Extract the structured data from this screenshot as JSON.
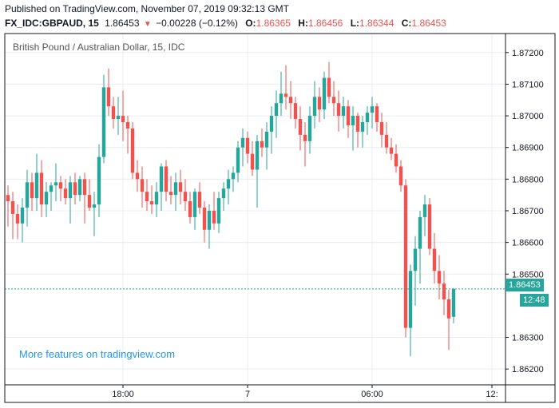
{
  "header": {
    "published": "Published on TradingView.com, November 07, 2019 09:32:13 GMT",
    "symbol": "FX_IDC:GBPAUD, 15",
    "last": "1.86453",
    "change": "−0.00228 (−0.12%)",
    "open_label": "O:",
    "open": "1.86365",
    "high_label": "H:",
    "high": "1.86456",
    "low_label": "L:",
    "low": "1.86344",
    "close_label": "C:",
    "close": "1.86453"
  },
  "promo_text": "More features on tradingview.com",
  "price_tag": "1.86453",
  "time_tag": "12:48",
  "colors": {
    "up": "#26a69a",
    "down": "#ef5350",
    "grid": "#e9ecf2",
    "axis": "#131722"
  },
  "chart_data": {
    "type": "candlestick",
    "title": "British Pound / Australian Dollar, 15, IDC",
    "ylim": [
      1.8615,
      1.8726
    ],
    "y_ticks": [
      "1.87200",
      "1.87100",
      "1.87000",
      "1.86900",
      "1.86800",
      "1.86700",
      "1.86600",
      "1.86500",
      "1.86300",
      "1.86200"
    ],
    "y_tick_values": [
      1.872,
      1.871,
      1.87,
      1.869,
      1.868,
      1.867,
      1.866,
      1.865,
      1.863,
      1.862
    ],
    "x_ticks": [
      "18:00",
      "7",
      "06:00",
      "12:"
    ],
    "x_tick_index": [
      24,
      50,
      76,
      101
    ],
    "last_price": 1.86453,
    "ohlc": [
      [
        1.8675,
        1.8678,
        1.8665,
        1.8673
      ],
      [
        1.8673,
        1.8676,
        1.8661,
        1.8669
      ],
      [
        1.8669,
        1.8672,
        1.8661,
        1.8666
      ],
      [
        1.8666,
        1.8674,
        1.866,
        1.8671
      ],
      [
        1.8671,
        1.8683,
        1.8665,
        1.8679
      ],
      [
        1.8679,
        1.8682,
        1.867,
        1.8674
      ],
      [
        1.8674,
        1.8688,
        1.867,
        1.8682
      ],
      [
        1.8682,
        1.8686,
        1.8668,
        1.8672
      ],
      [
        1.8672,
        1.8679,
        1.8668,
        1.8676
      ],
      [
        1.8676,
        1.8679,
        1.867,
        1.8678
      ],
      [
        1.8678,
        1.8685,
        1.8673,
        1.8679
      ],
      [
        1.8679,
        1.8681,
        1.8673,
        1.8677
      ],
      [
        1.8677,
        1.868,
        1.8672,
        1.8674
      ],
      [
        1.8674,
        1.8681,
        1.8666,
        1.8679
      ],
      [
        1.8679,
        1.8682,
        1.8672,
        1.8675
      ],
      [
        1.8675,
        1.8681,
        1.8673,
        1.868
      ],
      [
        1.868,
        1.8682,
        1.8666,
        1.8675
      ],
      [
        1.8675,
        1.868,
        1.867,
        1.8671
      ],
      [
        1.8671,
        1.8676,
        1.8662,
        1.8672
      ],
      [
        1.8672,
        1.8691,
        1.8668,
        1.8687
      ],
      [
        1.8687,
        1.8713,
        1.8685,
        1.8709
      ],
      [
        1.8709,
        1.8715,
        1.87,
        1.8703
      ],
      [
        1.8703,
        1.8706,
        1.8696,
        1.8699
      ],
      [
        1.8699,
        1.8706,
        1.8694,
        1.87
      ],
      [
        1.87,
        1.8708,
        1.8692,
        1.8698
      ],
      [
        1.8698,
        1.87,
        1.8688,
        1.8696
      ],
      [
        1.8696,
        1.8698,
        1.868,
        1.8682
      ],
      [
        1.8682,
        1.8686,
        1.8676,
        1.868
      ],
      [
        1.868,
        1.8684,
        1.8671,
        1.8676
      ],
      [
        1.8676,
        1.868,
        1.867,
        1.8673
      ],
      [
        1.8673,
        1.8678,
        1.8669,
        1.8672
      ],
      [
        1.8672,
        1.8679,
        1.8668,
        1.8676
      ],
      [
        1.8676,
        1.8685,
        1.867,
        1.8684
      ],
      [
        1.8684,
        1.8686,
        1.8673,
        1.8676
      ],
      [
        1.8676,
        1.8681,
        1.8672,
        1.8675
      ],
      [
        1.8675,
        1.8682,
        1.867,
        1.8679
      ],
      [
        1.8679,
        1.8683,
        1.8672,
        1.8676
      ],
      [
        1.8676,
        1.868,
        1.867,
        1.8673
      ],
      [
        1.8673,
        1.8676,
        1.8666,
        1.8668
      ],
      [
        1.8668,
        1.8677,
        1.8664,
        1.8676
      ],
      [
        1.8676,
        1.8679,
        1.8669,
        1.8671
      ],
      [
        1.8671,
        1.8673,
        1.866,
        1.8664
      ],
      [
        1.8664,
        1.8672,
        1.8658,
        1.867
      ],
      [
        1.867,
        1.8676,
        1.8664,
        1.8666
      ],
      [
        1.8666,
        1.8676,
        1.8663,
        1.8674
      ],
      [
        1.8674,
        1.8679,
        1.867,
        1.8677
      ],
      [
        1.8677,
        1.8683,
        1.8672,
        1.868
      ],
      [
        1.868,
        1.8684,
        1.8676,
        1.8682
      ],
      [
        1.8682,
        1.8692,
        1.8679,
        1.869
      ],
      [
        1.869,
        1.8696,
        1.8684,
        1.8693
      ],
      [
        1.8693,
        1.8695,
        1.8685,
        1.8688
      ],
      [
        1.8688,
        1.8692,
        1.8681,
        1.8683
      ],
      [
        1.8683,
        1.8694,
        1.8671,
        1.8692
      ],
      [
        1.8692,
        1.8696,
        1.8687,
        1.869
      ],
      [
        1.869,
        1.8698,
        1.8683,
        1.8695
      ],
      [
        1.8695,
        1.8703,
        1.8688,
        1.87
      ],
      [
        1.87,
        1.8708,
        1.8693,
        1.8704
      ],
      [
        1.8704,
        1.8714,
        1.87,
        1.8707
      ],
      [
        1.8707,
        1.8716,
        1.8702,
        1.8706
      ],
      [
        1.8706,
        1.8711,
        1.8699,
        1.8704
      ],
      [
        1.8704,
        1.8706,
        1.8696,
        1.8699
      ],
      [
        1.8699,
        1.8703,
        1.8689,
        1.8694
      ],
      [
        1.8694,
        1.8698,
        1.8684,
        1.8692
      ],
      [
        1.8692,
        1.8703,
        1.8688,
        1.87
      ],
      [
        1.87,
        1.8711,
        1.8696,
        1.8706
      ],
      [
        1.8706,
        1.8709,
        1.8698,
        1.8702
      ],
      [
        1.8702,
        1.8714,
        1.8699,
        1.8712
      ],
      [
        1.8712,
        1.8717,
        1.8704,
        1.8706
      ],
      [
        1.8706,
        1.8711,
        1.87,
        1.8704
      ],
      [
        1.8704,
        1.8708,
        1.8695,
        1.87
      ],
      [
        1.87,
        1.8706,
        1.8696,
        1.8703
      ],
      [
        1.8703,
        1.8705,
        1.8693,
        1.8697
      ],
      [
        1.8697,
        1.8703,
        1.8689,
        1.87
      ],
      [
        1.87,
        1.8701,
        1.869,
        1.8695
      ],
      [
        1.8695,
        1.87,
        1.869,
        1.8698
      ],
      [
        1.8698,
        1.8703,
        1.8694,
        1.8701
      ],
      [
        1.8701,
        1.8706,
        1.8696,
        1.8703
      ],
      [
        1.8703,
        1.8704,
        1.8695,
        1.8698
      ],
      [
        1.8698,
        1.8701,
        1.869,
        1.8694
      ],
      [
        1.8694,
        1.8698,
        1.8688,
        1.869
      ],
      [
        1.869,
        1.8693,
        1.8686,
        1.8688
      ],
      [
        1.8688,
        1.8691,
        1.8682,
        1.8684
      ],
      [
        1.8684,
        1.8686,
        1.8676,
        1.8678
      ],
      [
        1.8678,
        1.868,
        1.863,
        1.8633
      ],
      [
        1.8633,
        1.8653,
        1.8624,
        1.8651
      ],
      [
        1.8651,
        1.8662,
        1.864,
        1.8658
      ],
      [
        1.8658,
        1.867,
        1.8647,
        1.8668
      ],
      [
        1.8668,
        1.8675,
        1.8662,
        1.8672
      ],
      [
        1.8672,
        1.8674,
        1.8656,
        1.8658
      ],
      [
        1.8658,
        1.8663,
        1.8647,
        1.8651
      ],
      [
        1.8651,
        1.8656,
        1.8642,
        1.8647
      ],
      [
        1.8647,
        1.8651,
        1.8637,
        1.8642
      ],
      [
        1.8642,
        1.8645,
        1.8626,
        1.8636
      ],
      [
        1.86365,
        1.86456,
        1.86344,
        1.86453
      ]
    ]
  }
}
